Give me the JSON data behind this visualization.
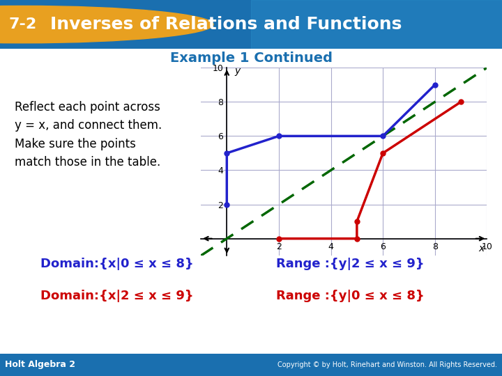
{
  "title_badge": "7-2",
  "title_text": "Inverses of Relations and Functions",
  "subtitle": "Example 1 Continued",
  "header_bg_color": "#1a6faf",
  "header_badge_color": "#e8a020",
  "body_bg_color": "#ffffff",
  "blue_line_x": [
    0,
    0,
    2,
    6,
    8
  ],
  "blue_line_y": [
    2,
    5,
    6,
    6,
    9
  ],
  "red_line_x": [
    2,
    5,
    5,
    6,
    9
  ],
  "red_line_y": [
    0,
    0,
    1,
    5,
    8
  ],
  "dashed_line_x": [
    -1,
    10
  ],
  "dashed_line_y": [
    -1,
    10
  ],
  "blue_color": "#2222cc",
  "red_color": "#cc0000",
  "green_color": "#006600",
  "grid_color": "#aaaacc",
  "axis_range": [
    -1,
    10
  ],
  "tick_positions": [
    0,
    2,
    4,
    6,
    8,
    10
  ],
  "body_text_line1": "Reflect each point across",
  "body_text_line2": "y = x, and connect them.",
  "body_text_line3": "Make sure the points",
  "body_text_line4": "match those in the table.",
  "domain1": "Domain:{x|0 ≤ x ≤ 8}",
  "range1": "Range :{y|2 ≤ x ≤ 9}",
  "domain2": "Domain:{x|2 ≤ x ≤ 9}",
  "range2": "Range :{y|0 ≤ x ≤ 8}",
  "footer_left": "Holt Algebra 2",
  "footer_right": "Copyright © by Holt, Rinehart and Winston. All Rights Reserved.",
  "footer_bg": "#1a6faf"
}
